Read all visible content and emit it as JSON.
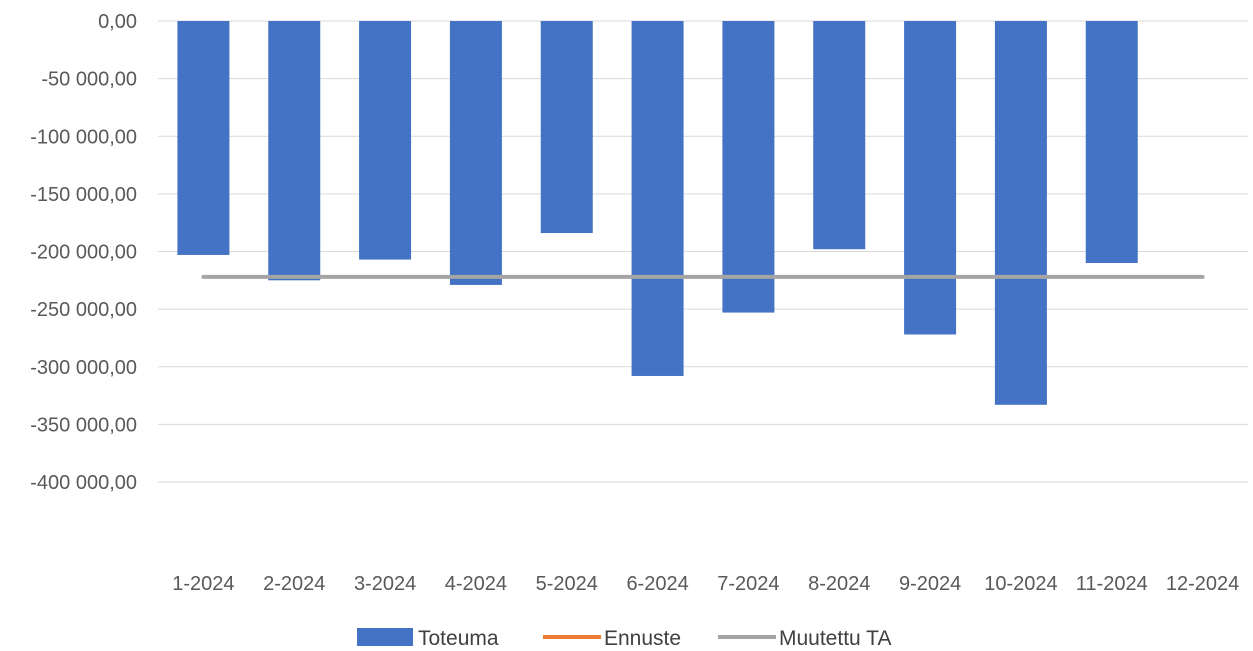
{
  "chart_data": {
    "type": "bar",
    "categories": [
      "1-2024",
      "2-2024",
      "3-2024",
      "4-2024",
      "5-2024",
      "6-2024",
      "7-2024",
      "8-2024",
      "9-2024",
      "10-2024",
      "11-2024",
      "12-2024"
    ],
    "series": [
      {
        "name": "Toteuma",
        "type": "bar",
        "color": "#4472C4",
        "values": [
          -203000,
          -225000,
          -207000,
          -229000,
          -184000,
          -308000,
          -253000,
          -198000,
          -272000,
          -333000,
          -210000,
          null
        ]
      },
      {
        "name": "Ennuste",
        "type": "line",
        "color": "#ED7D31",
        "values": [
          null,
          null,
          null,
          null,
          null,
          null,
          null,
          null,
          null,
          null,
          null,
          null
        ]
      },
      {
        "name": "Muutettu TA",
        "type": "line",
        "color": "#A5A5A5",
        "values": [
          -222000,
          -222000,
          -222000,
          -222000,
          -222000,
          -222000,
          -222000,
          -222000,
          -222000,
          -222000,
          -222000,
          -222000
        ]
      }
    ],
    "ylim": [
      -400000,
      0
    ],
    "yticks": [
      0,
      -50000,
      -100000,
      -150000,
      -200000,
      -250000,
      -300000,
      -350000,
      -400000
    ],
    "ytick_labels": [
      "0,00",
      "-50 000,00",
      "-100 000,00",
      "-150 000,00",
      "-200 000,00",
      "-250 000,00",
      "-300 000,00",
      "-350 000,00",
      "-400 000,00"
    ],
    "title": "",
    "xlabel": "",
    "ylabel": "",
    "grid": true,
    "legend_position": "bottom"
  }
}
